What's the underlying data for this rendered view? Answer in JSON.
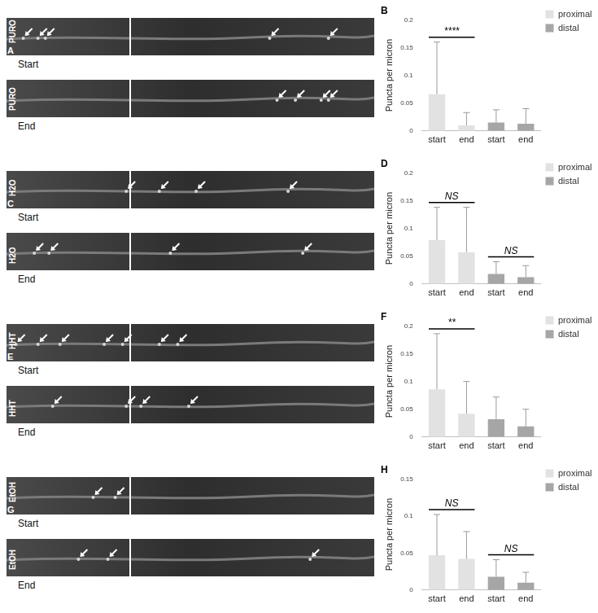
{
  "figure": {
    "rows": [
      {
        "image": {
          "letter": "A",
          "label": "PURO",
          "captions": [
            "Start",
            "End"
          ]
        }
      },
      {
        "image": {
          "letter": "C",
          "label": "H2O",
          "captions": [
            "Start",
            "End"
          ]
        }
      },
      {
        "image": {
          "letter": "E",
          "label": "HHT",
          "captions": [
            "Start",
            "End"
          ]
        }
      },
      {
        "image": {
          "letter": "G",
          "label": "EtOH",
          "captions": [
            "Start",
            "End"
          ]
        }
      }
    ]
  },
  "chart_data": [
    {
      "type": "bar",
      "title": "B",
      "ylabel": "Puncta per micron",
      "categories": [
        "start",
        "end",
        "start",
        "end"
      ],
      "series": [
        {
          "name": "proximal",
          "color": "#e2e2e2",
          "values": [
            0.066,
            0.01,
            null,
            null
          ],
          "error": [
            0.094,
            0.023,
            null,
            null
          ]
        },
        {
          "name": "distal",
          "color": "#a6a6a6",
          "values": [
            null,
            null,
            0.015,
            0.013
          ],
          "error": [
            null,
            null,
            0.023,
            0.027
          ]
        }
      ],
      "ylim": [
        0,
        0.2
      ],
      "yticks": [
        0,
        0.05,
        0.1,
        0.15,
        0.2
      ],
      "grid": false,
      "legend": "right",
      "annotations": [
        {
          "text": "****",
          "from": 0,
          "to": 1
        }
      ]
    },
    {
      "type": "bar",
      "title": "D",
      "ylabel": "Puncta per micron",
      "categories": [
        "start",
        "end",
        "start",
        "end"
      ],
      "series": [
        {
          "name": "proximal",
          "color": "#e2e2e2",
          "values": [
            0.079,
            0.057,
            null,
            null
          ],
          "error": [
            0.059,
            0.081,
            null,
            null
          ]
        },
        {
          "name": "distal",
          "color": "#a6a6a6",
          "values": [
            null,
            null,
            0.018,
            0.012
          ],
          "error": [
            null,
            null,
            0.022,
            0.021
          ]
        }
      ],
      "ylim": [
        0,
        0.2
      ],
      "yticks": [
        0,
        0.05,
        0.1,
        0.15,
        0.2
      ],
      "grid": false,
      "legend": "right",
      "annotations": [
        {
          "text": "NS",
          "from": 0,
          "to": 1
        },
        {
          "text": "NS",
          "from": 2,
          "to": 3
        }
      ]
    },
    {
      "type": "bar",
      "title": "F",
      "ylabel": "Puncta per micron",
      "categories": [
        "start",
        "end",
        "start",
        "end"
      ],
      "series": [
        {
          "name": "proximal",
          "color": "#e2e2e2",
          "values": [
            0.086,
            0.042,
            null,
            null
          ],
          "error": [
            0.1,
            0.058,
            null,
            null
          ]
        },
        {
          "name": "distal",
          "color": "#a6a6a6",
          "values": [
            null,
            null,
            0.032,
            0.019
          ],
          "error": [
            null,
            null,
            0.04,
            0.031
          ]
        }
      ],
      "ylim": [
        0,
        0.2
      ],
      "yticks": [
        0,
        0.05,
        0.1,
        0.15,
        0.2
      ],
      "grid": false,
      "legend": "right",
      "annotations": [
        {
          "text": "**",
          "from": 0,
          "to": 1
        }
      ]
    },
    {
      "type": "bar",
      "title": "H",
      "ylabel": "Puncta per micron",
      "categories": [
        "start",
        "end",
        "start",
        "end"
      ],
      "series": [
        {
          "name": "proximal",
          "color": "#e2e2e2",
          "values": [
            0.047,
            0.042,
            null,
            null
          ],
          "error": [
            0.055,
            0.037,
            null,
            null
          ]
        },
        {
          "name": "distal",
          "color": "#a6a6a6",
          "values": [
            null,
            null,
            0.018,
            0.01
          ],
          "error": [
            null,
            null,
            0.023,
            0.014
          ]
        }
      ],
      "ylim": [
        0,
        0.15
      ],
      "yticks": [
        0,
        0.05,
        0.1,
        0.15
      ],
      "grid": false,
      "legend": "right",
      "annotations": [
        {
          "text": "NS",
          "from": 0,
          "to": 1
        },
        {
          "text": "NS",
          "from": 2,
          "to": 3
        }
      ]
    }
  ]
}
